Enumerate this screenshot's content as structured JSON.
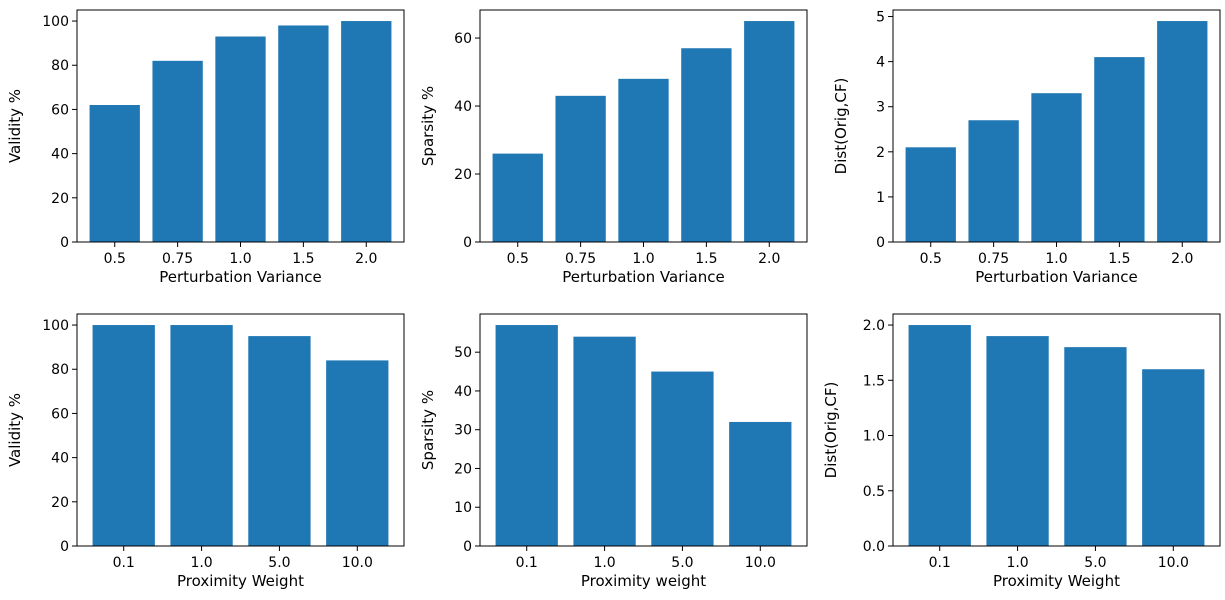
{
  "bar_color": "#1f77b4",
  "chart_data": [
    {
      "type": "bar",
      "categories": [
        "0.5",
        "0.75",
        "1.0",
        "1.5",
        "2.0"
      ],
      "values": [
        62,
        82,
        93,
        98,
        100
      ],
      "xlabel": "Perturbation Variance",
      "ylabel": "Validity %",
      "ylim": [
        0,
        105
      ],
      "yticks": [
        0,
        20,
        40,
        60,
        80,
        100
      ],
      "ytick_labels": [
        "0",
        "20",
        "40",
        "60",
        "80",
        "100"
      ],
      "grid": false
    },
    {
      "type": "bar",
      "categories": [
        "0.5",
        "0.75",
        "1.0",
        "1.5",
        "2.0"
      ],
      "values": [
        26,
        43,
        48,
        57,
        65
      ],
      "xlabel": "Perturbation Variance",
      "ylabel": "Sparsity %",
      "ylim": [
        0,
        68.25
      ],
      "yticks": [
        0,
        20,
        40,
        60
      ],
      "ytick_labels": [
        "0",
        "20",
        "40",
        "60"
      ],
      "grid": false
    },
    {
      "type": "bar",
      "categories": [
        "0.5",
        "0.75",
        "1.0",
        "1.5",
        "2.0"
      ],
      "values": [
        2.1,
        2.7,
        3.3,
        4.1,
        4.9
      ],
      "xlabel": "Perturbation Variance",
      "ylabel": "Dist(Orig,CF)",
      "ylim": [
        0,
        5.145
      ],
      "yticks": [
        0,
        1,
        2,
        3,
        4,
        5
      ],
      "ytick_labels": [
        "0",
        "1",
        "2",
        "3",
        "4",
        "5"
      ],
      "grid": false
    },
    {
      "type": "bar",
      "categories": [
        "0.1",
        "1.0",
        "5.0",
        "10.0"
      ],
      "values": [
        100,
        100,
        95,
        84
      ],
      "xlabel": "Proximity Weight",
      "ylabel": "Validity %",
      "ylim": [
        0,
        105
      ],
      "yticks": [
        0,
        20,
        40,
        60,
        80,
        100
      ],
      "ytick_labels": [
        "0",
        "20",
        "40",
        "60",
        "80",
        "100"
      ],
      "grid": false
    },
    {
      "type": "bar",
      "categories": [
        "0.1",
        "1.0",
        "5.0",
        "10.0"
      ],
      "values": [
        57,
        54,
        45,
        32
      ],
      "xlabel": "Proximity weight",
      "ylabel": "Sparsity %",
      "ylim": [
        0,
        59.85
      ],
      "yticks": [
        0,
        10,
        20,
        30,
        40,
        50
      ],
      "ytick_labels": [
        "0",
        "10",
        "20",
        "30",
        "40",
        "50"
      ],
      "grid": false
    },
    {
      "type": "bar",
      "categories": [
        "0.1",
        "1.0",
        "5.0",
        "10.0"
      ],
      "values": [
        2.0,
        1.9,
        1.8,
        1.6
      ],
      "xlabel": "Proximity Weight",
      "ylabel": "Dist(Orig,CF)",
      "ylim": [
        0,
        2.1
      ],
      "yticks": [
        0,
        0.5,
        1.0,
        1.5,
        2.0
      ],
      "ytick_labels": [
        "0.0",
        "0.5",
        "1.0",
        "1.5",
        "2.0"
      ],
      "grid": false
    }
  ]
}
